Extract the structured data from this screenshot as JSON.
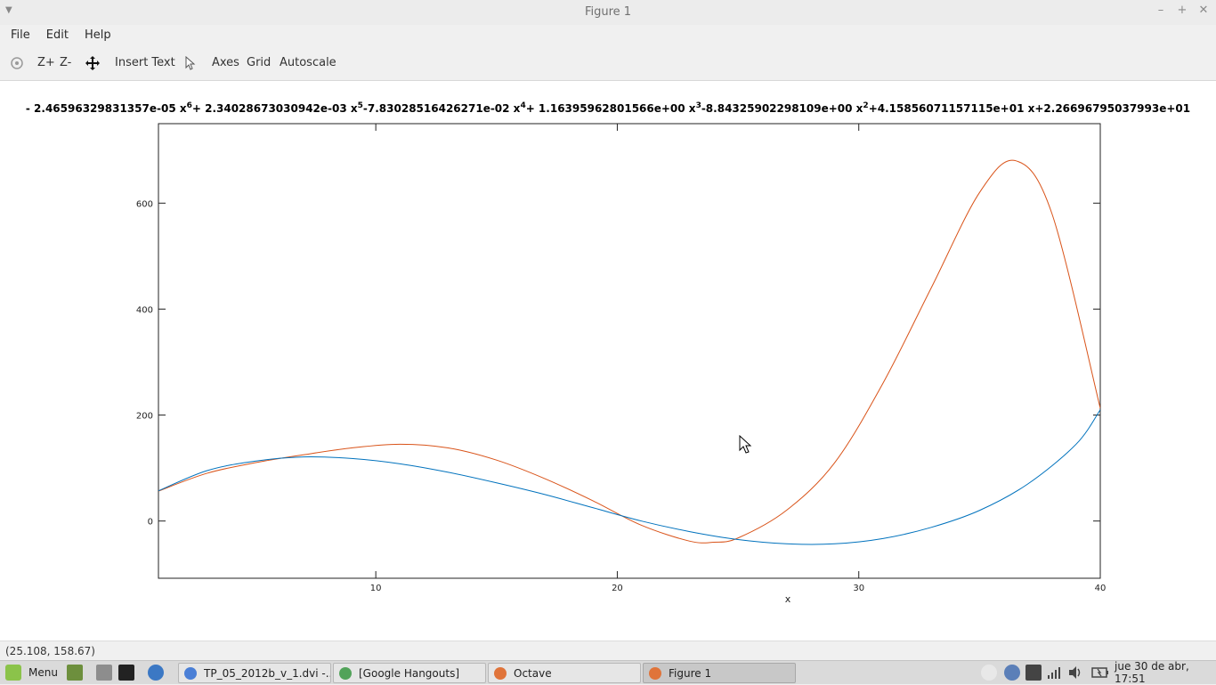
{
  "window": {
    "title": "Figure 1",
    "controls": [
      "–",
      "+",
      "✕"
    ]
  },
  "menu": {
    "file": "File",
    "edit": "Edit",
    "help": "Help"
  },
  "toolbar": {
    "zoom_in": "Z+",
    "zoom_out": "Z-",
    "insert_text": "Insert Text",
    "axes": "Axes",
    "grid": "Grid",
    "autoscale": "Autoscale"
  },
  "plot": {
    "title_terms": [
      {
        "text": "- 2.46596329831357e-05 x",
        "sup": "6"
      },
      {
        "text": "+ 2.34028673030942e-03 x",
        "sup": "5"
      },
      {
        "text": "-7.83028516426271e-02 x",
        "sup": "4"
      },
      {
        "text": "+ 1.16395962801566e+00 x",
        "sup": "3"
      },
      {
        "text": "-8.84325902298109e+00 x",
        "sup": "2"
      },
      {
        "text": "+4.15856071157115e+01 x+2.26696795037993e+01",
        "sup": ""
      }
    ],
    "xlabel": "x"
  },
  "chart_data": {
    "type": "line",
    "title": "- 2.46596329831357e-05 x^6+ 2.34028673030942e-03 x^5-7.83028516426271e-02 x^4+ 1.16395962801566e+00 x^3-8.84325902298109e+00 x^2+4.15856071157115e+01 x+2.26696795037993e+01",
    "xlabel": "x",
    "ylabel": "",
    "xlim": [
      1,
      40
    ],
    "ylim": [
      -108,
      750
    ],
    "xticks": [
      10,
      20,
      30,
      40
    ],
    "yticks": [
      0,
      200,
      400,
      600
    ],
    "grid": false,
    "series": [
      {
        "color": "#d95319",
        "x": [
          1,
          3,
          5,
          7,
          9,
          11,
          13,
          15,
          17,
          19,
          21,
          23,
          24,
          25,
          27,
          29,
          31,
          33,
          35,
          36.5,
          38,
          40
        ],
        "y": [
          56.5,
          90,
          110,
          125,
          138,
          145,
          138,
          115,
          80,
          38,
          -8,
          -38,
          -40,
          -32,
          20,
          110,
          260,
          440,
          620,
          680,
          580,
          213
        ]
      },
      {
        "color": "#0072bd",
        "x": [
          1,
          3,
          5,
          7,
          9,
          11,
          13,
          15,
          17,
          19,
          21,
          23,
          25,
          27,
          29,
          31,
          33,
          35,
          37,
          39,
          40
        ],
        "y": [
          57,
          95,
          113,
          121,
          118,
          108,
          92,
          72,
          50,
          25,
          0,
          -20,
          -35,
          -43,
          -43,
          -33,
          -12,
          20,
          70,
          145,
          210
        ]
      }
    ]
  },
  "statusbar": {
    "coords": "(25.108, 158.67)"
  },
  "taskbar": {
    "menu_label": "Menu",
    "windows": [
      {
        "label": "TP_05_2012b_v_1.dvi -...",
        "icon_color": "#4a7fd6",
        "active": false
      },
      {
        "label": "[Google Hangouts]",
        "icon_color": "#52a35a",
        "active": false
      },
      {
        "label": "Octave",
        "icon_color": "#e0743a",
        "active": false
      },
      {
        "label": "Figure 1",
        "icon_color": "#e0743a",
        "active": true
      }
    ],
    "clock": "jue 30 de abr, 17:51"
  }
}
